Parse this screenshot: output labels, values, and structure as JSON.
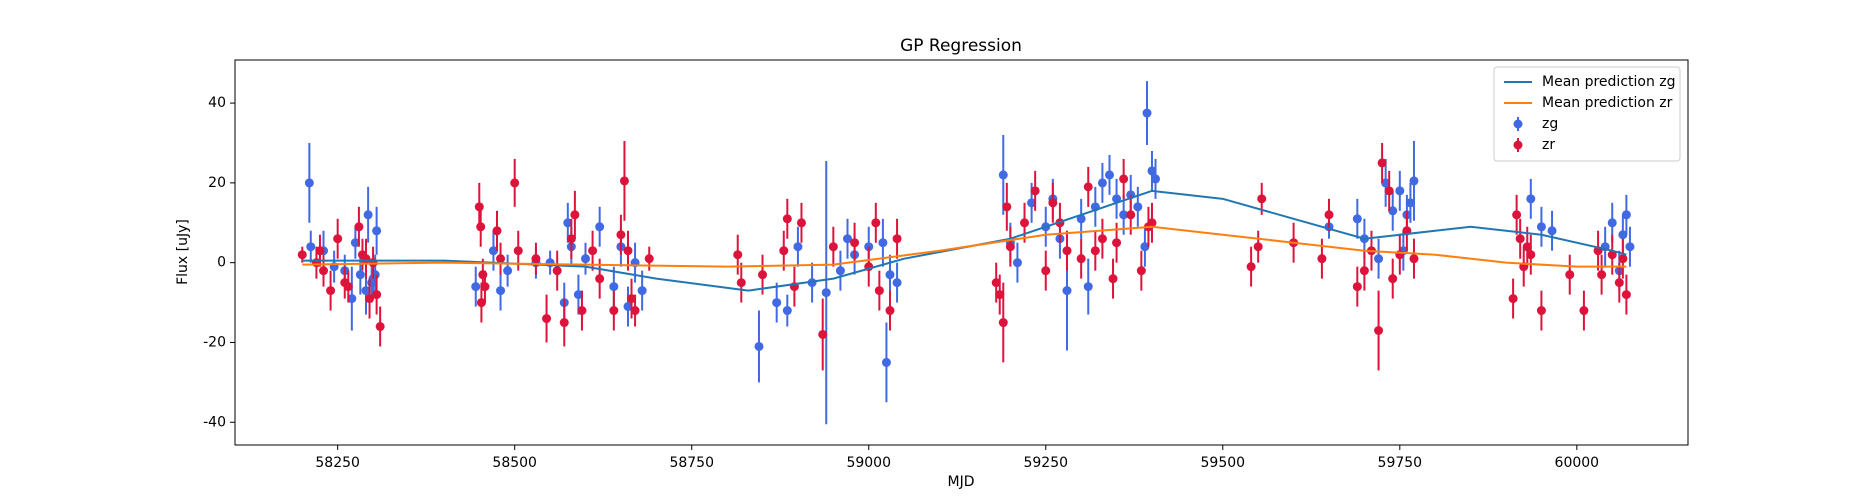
{
  "chart_data": {
    "type": "errorbar",
    "title": "GP Regression",
    "x_label": "MJD",
    "y_label": "Flux [uJy]",
    "xlim": [
      58105,
      60157
    ],
    "ylim": [
      -45.7,
      50.8
    ],
    "xticks": [
      58250,
      58500,
      58750,
      59000,
      59250,
      59500,
      59750,
      60000
    ],
    "yticks": [
      -40,
      -20,
      0,
      20,
      40
    ],
    "grid": false,
    "legend": "upper right",
    "series": [
      {
        "name": "Mean prediction zg",
        "type": "line",
        "color": "#1f77b4",
        "x": [
          58200,
          58400,
          58600,
          58700,
          58830,
          58950,
          59050,
          59200,
          59300,
          59400,
          59500,
          59600,
          59700,
          59800,
          59850,
          59950,
          60050,
          60070
        ],
        "values": [
          0.5,
          0.5,
          -1,
          -4,
          -7,
          -4,
          1,
          6,
          12,
          18,
          16,
          11,
          6,
          8,
          9,
          7,
          3,
          2
        ]
      },
      {
        "name": "Mean prediction zr",
        "type": "line",
        "color": "#ff7f0e",
        "x": [
          58200,
          58400,
          58600,
          58800,
          58950,
          59100,
          59250,
          59400,
          59500,
          59600,
          59700,
          59800,
          59900,
          60000,
          60070
        ],
        "values": [
          -0.5,
          0,
          -0.5,
          -1,
          -0.5,
          3,
          7,
          9,
          7,
          5,
          3,
          2,
          0,
          -1,
          -1
        ]
      },
      {
        "name": "zg",
        "type": "errorbar",
        "color": "#4169e1",
        "x": [
          58210,
          58212,
          58230,
          58245,
          58260,
          58270,
          58275,
          58282,
          58290,
          58293,
          58300,
          58303,
          58305,
          58298,
          58445,
          58470,
          58480,
          58490,
          58530,
          58550,
          58570,
          58575,
          58580,
          58590,
          58600,
          58620,
          58640,
          58650,
          58660,
          58670,
          58680,
          58845,
          58870,
          58885,
          58900,
          58920,
          58940,
          58960,
          58970,
          58980,
          59000,
          59020,
          59025,
          59030,
          59040,
          59190,
          59200,
          59210,
          59230,
          59250,
          59260,
          59270,
          59280,
          59300,
          59310,
          59320,
          59330,
          59340,
          59350,
          59360,
          59370,
          59380,
          59390,
          59393,
          59400,
          59405,
          59650,
          59690,
          59700,
          59720,
          59730,
          59740,
          59750,
          59755,
          59760,
          59770,
          59765,
          59935,
          59950,
          59965,
          60040,
          60050,
          60060,
          60065,
          60070,
          60075
        ],
        "values": [
          20,
          4,
          3,
          -1,
          -2,
          -9,
          5,
          -3,
          -7,
          12,
          -4,
          -3,
          8,
          -5,
          -6,
          3,
          -7,
          -2,
          0,
          0,
          -10,
          10,
          4,
          -8,
          1,
          9,
          -6,
          4,
          -11,
          0,
          -7,
          -21,
          -10,
          -12,
          4,
          -5,
          -7.5,
          -2,
          6,
          2,
          4,
          5,
          -25,
          -3,
          -5,
          22,
          5,
          0,
          15,
          9,
          16,
          6,
          -7,
          11,
          -6,
          14,
          20,
          22,
          16,
          12,
          17,
          14,
          4,
          37.5,
          23,
          21,
          9,
          11,
          6,
          1,
          20,
          13,
          18,
          3,
          12,
          20.5,
          15,
          16,
          9,
          8,
          4,
          10,
          -2,
          7,
          12,
          4
        ],
        "errors": [
          10,
          4,
          5,
          4,
          4,
          8,
          4,
          5,
          6,
          7,
          4,
          5,
          6,
          5,
          5,
          5,
          5,
          4,
          4,
          3,
          5,
          5,
          5,
          5,
          4,
          5,
          5,
          5,
          5,
          5,
          5,
          9,
          5,
          4,
          5,
          5,
          33,
          5,
          5,
          5,
          5,
          6,
          10,
          5,
          5,
          10,
          5,
          5,
          5,
          5,
          5,
          5,
          15,
          5,
          7,
          5,
          5,
          5,
          5,
          5,
          5,
          5,
          5,
          8,
          5,
          5,
          3,
          5,
          5,
          5,
          6,
          5,
          5,
          5,
          5,
          10,
          5,
          5,
          5,
          5,
          5,
          5,
          5,
          5,
          5,
          5
        ]
      },
      {
        "name": "zr",
        "type": "errorbar",
        "color": "#dc143c",
        "x": [
          58200,
          58220,
          58225,
          58230,
          58240,
          58250,
          58260,
          58265,
          58280,
          58285,
          58290,
          58295,
          58300,
          58305,
          58310,
          58450,
          58452,
          58455,
          58458,
          58453,
          58475,
          58480,
          58500,
          58505,
          58530,
          58545,
          58560,
          58570,
          58580,
          58585,
          58595,
          58610,
          58620,
          58640,
          58650,
          58655,
          58660,
          58665,
          58670,
          58690,
          58815,
          58820,
          58850,
          58880,
          58885,
          58895,
          58905,
          58935,
          58950,
          58980,
          59000,
          59010,
          59015,
          59030,
          59040,
          59180,
          59185,
          59190,
          59195,
          59200,
          59220,
          59235,
          59250,
          59260,
          59270,
          59280,
          59300,
          59310,
          59320,
          59330,
          59345,
          59350,
          59360,
          59370,
          59385,
          59395,
          59400,
          59540,
          59550,
          59555,
          59600,
          59640,
          59650,
          59690,
          59700,
          59710,
          59720,
          59725,
          59735,
          59740,
          59750,
          59760,
          59770,
          59910,
          59915,
          59920,
          59925,
          59930,
          59935,
          59950,
          59990,
          60010,
          60030,
          60035,
          60050,
          60060,
          60065,
          60070
        ],
        "values": [
          2,
          0,
          3,
          -2,
          -7,
          6,
          -5,
          -6,
          9,
          2,
          1,
          -9,
          0,
          -8,
          -16,
          14,
          9,
          -3,
          -6,
          -10,
          8,
          1,
          20,
          3,
          1,
          -14,
          -2,
          -15,
          6,
          12,
          -12,
          3,
          -4,
          -12,
          7,
          20.5,
          3,
          -9,
          -12,
          1,
          2,
          -5,
          -3,
          3,
          11,
          -6,
          10,
          -18,
          4,
          5,
          -1,
          10,
          -7,
          -12,
          6,
          -5,
          -8,
          -15,
          14,
          4,
          10,
          18,
          -2,
          15,
          10,
          3,
          1,
          19,
          3,
          6,
          -4,
          5,
          21,
          12,
          -2,
          9,
          10,
          -1,
          4,
          16,
          5,
          1,
          12,
          -6,
          -2,
          3,
          -17,
          25,
          18,
          -4,
          2,
          8,
          1,
          -9,
          12,
          6,
          -1,
          4,
          2,
          -12,
          -3,
          -12,
          3,
          -3,
          2,
          -5,
          1,
          -8
        ],
        "errors": [
          2,
          4,
          4,
          4,
          5,
          5,
          4,
          4,
          5,
          4,
          5,
          5,
          4,
          5,
          5,
          6,
          5,
          4,
          4,
          5,
          5,
          4,
          6,
          5,
          4,
          6,
          5,
          6,
          5,
          6,
          5,
          5,
          5,
          5,
          5,
          10,
          5,
          5,
          4,
          3,
          5,
          5,
          5,
          5,
          5,
          5,
          5,
          9,
          5,
          5,
          5,
          5,
          5,
          5,
          5,
          5,
          5,
          10,
          6,
          5,
          5,
          5,
          5,
          5,
          5,
          5,
          5,
          5,
          5,
          5,
          5,
          5,
          5,
          5,
          5,
          5,
          5,
          5,
          4,
          4,
          5,
          5,
          4,
          5,
          5,
          5,
          10,
          5,
          5,
          5,
          5,
          5,
          5,
          5,
          5,
          5,
          5,
          5,
          5,
          5,
          5,
          5,
          5,
          5,
          5,
          5,
          5,
          5
        ]
      }
    ]
  }
}
